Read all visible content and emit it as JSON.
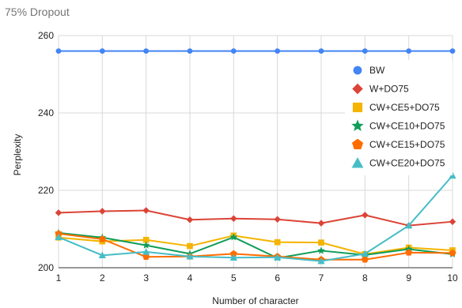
{
  "chart_data": {
    "type": "line",
    "title": "75% Dropout",
    "xlabel": "Number of character",
    "ylabel": "Perplexity",
    "x": [
      1,
      2,
      3,
      4,
      5,
      6,
      7,
      8,
      9,
      10
    ],
    "xlim": [
      1,
      10
    ],
    "ylim": [
      200,
      260
    ],
    "yticks": [
      200,
      220,
      240,
      260
    ],
    "grid": true,
    "legend_position": "right",
    "series": [
      {
        "name": "BW",
        "color": "#4285f4",
        "marker": "circle",
        "values": [
          256,
          256,
          256,
          256,
          256,
          256,
          256,
          256,
          256,
          256
        ]
      },
      {
        "name": "W+DO75",
        "color": "#db4437",
        "marker": "diamond",
        "values": [
          214.2,
          214.6,
          214.8,
          212.4,
          212.7,
          212.5,
          211.5,
          213.6,
          210.9,
          211.9
        ]
      },
      {
        "name": "CW+CE5+DO75",
        "color": "#f4b400",
        "marker": "square",
        "values": [
          207.8,
          206.8,
          207.2,
          205.6,
          208.3,
          206.6,
          206.5,
          203.5,
          205.2,
          204.5
        ]
      },
      {
        "name": "CW+CE10+DO75",
        "color": "#0f9d58",
        "marker": "star",
        "values": [
          209.0,
          207.8,
          205.8,
          203.6,
          207.9,
          202.5,
          204.4,
          203.3,
          204.8,
          203.5
        ]
      },
      {
        "name": "CW+CE15+DO75",
        "color": "#ff6d01",
        "marker": "pentagon",
        "values": [
          208.8,
          207.4,
          202.8,
          202.9,
          203.6,
          202.9,
          202.1,
          202.1,
          203.9,
          203.8
        ]
      },
      {
        "name": "CW+CE20+DO75",
        "color": "#46bdc6",
        "marker": "triangle",
        "values": [
          207.9,
          203.2,
          204.1,
          202.9,
          202.6,
          202.7,
          201.7,
          203.6,
          210.9,
          223.8
        ]
      }
    ]
  }
}
